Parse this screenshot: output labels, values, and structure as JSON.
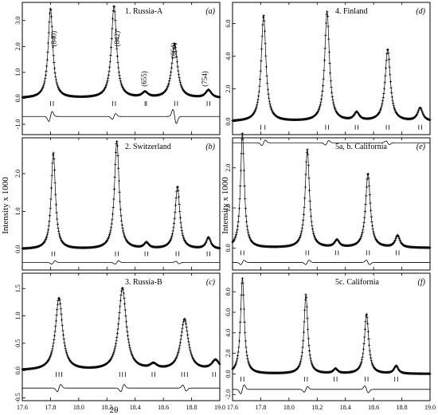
{
  "figure": {
    "ylabel": "Intensity x 1000",
    "xlabel": "2θ",
    "x_ticks": [
      "17.6",
      "17.8",
      "18.0",
      "18.2",
      "18.4",
      "18.6",
      "18.8",
      "19.0"
    ]
  },
  "chart_data": [
    {
      "type": "scatter",
      "panel": "(a)",
      "title": "1. Russia-A",
      "x_range": [
        17.6,
        19.0
      ],
      "ylim": [
        -1.4,
        3.7
      ],
      "y_ticks": [
        "-1.0",
        "0.0",
        "1.0",
        "2.0",
        "3.0"
      ],
      "peaks": [
        {
          "x": 17.8,
          "height": 3.45,
          "width": 0.02
        },
        {
          "x": 18.25,
          "height": 3.55,
          "width": 0.022
        },
        {
          "x": 18.47,
          "height": 0.2,
          "width": 0.025
        },
        {
          "x": 18.68,
          "height": 2.1,
          "width": 0.025
        },
        {
          "x": 18.92,
          "height": 0.3,
          "width": 0.025
        }
      ],
      "peak_labels": [
        {
          "text": "(840)",
          "x": 17.84,
          "y": 2.3
        },
        {
          "text": "(842)",
          "x": 18.29,
          "y": 2.3
        },
        {
          "text": "(655)",
          "x": 18.48,
          "y": 0.75
        },
        {
          "text": "(664)",
          "x": 18.69,
          "y": 1.85
        },
        {
          "text": "(754)",
          "x": 18.91,
          "y": 0.75
        }
      ],
      "reflection_ticks": [
        17.8,
        17.82,
        18.24,
        18.26,
        18.47,
        18.48,
        18.68,
        18.7,
        18.91,
        18.93
      ],
      "tick_row_y": -0.2,
      "diff_baseline": -0.7,
      "diff_features": [
        {
          "x": 17.8,
          "amp": 0.35
        },
        {
          "x": 18.25,
          "amp": 0.2
        },
        {
          "x": 18.68,
          "amp": -0.5
        }
      ]
    },
    {
      "type": "scatter",
      "panel": "(d)",
      "title": "4. Finland",
      "x_range": [
        17.6,
        19.0
      ],
      "ylim": [
        -0.8,
        7.3
      ],
      "y_ticks": [
        "0.0",
        "2.0",
        "4.0",
        "6.0"
      ],
      "peaks": [
        {
          "x": 17.82,
          "height": 6.5,
          "width": 0.02
        },
        {
          "x": 18.27,
          "height": 6.7,
          "width": 0.02
        },
        {
          "x": 18.48,
          "height": 0.5,
          "width": 0.022
        },
        {
          "x": 18.7,
          "height": 4.4,
          "width": 0.022
        },
        {
          "x": 18.93,
          "height": 0.8,
          "width": 0.022
        }
      ],
      "peak_labels": [],
      "reflection_ticks": [
        17.8,
        17.83,
        18.26,
        18.28,
        18.47,
        18.49,
        18.69,
        18.71,
        18.92,
        18.94
      ],
      "tick_row_y": -0.35,
      "diff_baseline": -1.3,
      "diff_features": [
        {
          "x": 17.82,
          "amp": 0.3
        },
        {
          "x": 18.27,
          "amp": 0.25
        },
        {
          "x": 18.7,
          "amp": -0.2
        }
      ]
    },
    {
      "type": "scatter",
      "panel": "(b)",
      "title": "2. Switzerland",
      "x_range": [
        17.6,
        19.0
      ],
      "ylim": [
        -0.55,
        2.95
      ],
      "y_ticks": [
        "0.0",
        "1.0",
        "2.0"
      ],
      "peaks": [
        {
          "x": 17.82,
          "height": 2.55,
          "width": 0.018
        },
        {
          "x": 18.27,
          "height": 2.85,
          "width": 0.02
        },
        {
          "x": 18.48,
          "height": 0.15,
          "width": 0.02
        },
        {
          "x": 18.7,
          "height": 1.65,
          "width": 0.02
        },
        {
          "x": 18.92,
          "height": 0.3,
          "width": 0.02
        }
      ],
      "peak_labels": [],
      "reflection_ticks": [
        17.81,
        17.83,
        18.26,
        18.28,
        18.47,
        18.49,
        18.69,
        18.71,
        18.91,
        18.93
      ],
      "tick_row_y": -0.12,
      "diff_baseline": -0.35,
      "diff_features": [
        {
          "x": 17.82,
          "amp": 0.08
        },
        {
          "x": 18.27,
          "amp": 0.08
        },
        {
          "x": 18.7,
          "amp": -0.06
        }
      ]
    },
    {
      "type": "scatter",
      "panel": "(e)",
      "title": "5a, b. California",
      "x_range": [
        17.6,
        19.0
      ],
      "ylim": [
        -0.55,
        2.75
      ],
      "y_ticks": [
        "0.0",
        "1.0",
        "2.0"
      ],
      "peaks": [
        {
          "x": 17.67,
          "height": 2.85,
          "width": 0.016
        },
        {
          "x": 18.13,
          "height": 2.45,
          "width": 0.018
        },
        {
          "x": 18.34,
          "height": 0.18,
          "width": 0.02
        },
        {
          "x": 18.56,
          "height": 1.85,
          "width": 0.02
        },
        {
          "x": 18.77,
          "height": 0.3,
          "width": 0.02
        }
      ],
      "peak_labels": [],
      "reflection_ticks": [
        17.66,
        17.68,
        18.12,
        18.14,
        18.33,
        18.35,
        18.55,
        18.57,
        18.76,
        18.78
      ],
      "tick_row_y": -0.12,
      "diff_baseline": -0.36,
      "diff_features": [
        {
          "x": 17.67,
          "amp": 0.1
        },
        {
          "x": 18.13,
          "amp": 0.1
        },
        {
          "x": 18.56,
          "amp": -0.1
        }
      ]
    },
    {
      "type": "scatter",
      "panel": "(c)",
      "title": "3. Russia-B",
      "x_range": [
        17.6,
        19.0
      ],
      "ylim": [
        -0.55,
        1.78
      ],
      "y_ticks": [
        "-0.5",
        "0.0",
        "0.5",
        "1.0",
        "1.5"
      ],
      "peaks": [
        {
          "x": 17.86,
          "height": 1.32,
          "width": 0.03
        },
        {
          "x": 18.31,
          "height": 1.5,
          "width": 0.032
        },
        {
          "x": 18.53,
          "height": 0.09,
          "width": 0.03
        },
        {
          "x": 18.75,
          "height": 0.93,
          "width": 0.032
        },
        {
          "x": 18.97,
          "height": 0.18,
          "width": 0.032
        }
      ],
      "peak_labels": [],
      "reflection_ticks": [
        17.84,
        17.86,
        17.88,
        18.29,
        18.31,
        18.33,
        18.52,
        18.54,
        18.73,
        18.75,
        18.77,
        18.95,
        18.97
      ],
      "tick_row_y": -0.07,
      "diff_baseline": -0.32,
      "diff_features": [
        {
          "x": 17.86,
          "amp": 0.12
        },
        {
          "x": 18.31,
          "amp": 0.12
        },
        {
          "x": 18.75,
          "amp": -0.1
        }
      ]
    },
    {
      "type": "scatter",
      "panel": "(f)",
      "title": "5c. California",
      "x_range": [
        17.6,
        19.0
      ],
      "ylim": [
        -2.6,
        9.8
      ],
      "y_ticks": [
        "-2.0",
        "0.0",
        "2.0",
        "4.0",
        "6.0",
        "8.0"
      ],
      "peaks": [
        {
          "x": 17.67,
          "height": 9.3,
          "width": 0.016
        },
        {
          "x": 18.12,
          "height": 7.7,
          "width": 0.016
        },
        {
          "x": 18.33,
          "height": 0.45,
          "width": 0.018
        },
        {
          "x": 18.55,
          "height": 5.8,
          "width": 0.018
        },
        {
          "x": 18.76,
          "height": 0.75,
          "width": 0.018
        }
      ],
      "peak_labels": [],
      "reflection_ticks": [
        17.66,
        17.68,
        18.11,
        18.13,
        18.32,
        18.34,
        18.54,
        18.56,
        18.75,
        18.77
      ],
      "tick_row_y": -0.5,
      "diff_baseline": -1.5,
      "diff_features": [
        {
          "x": 17.67,
          "amp": 0.8
        },
        {
          "x": 18.12,
          "amp": 0.5
        },
        {
          "x": 18.55,
          "amp": -0.6
        }
      ]
    }
  ]
}
